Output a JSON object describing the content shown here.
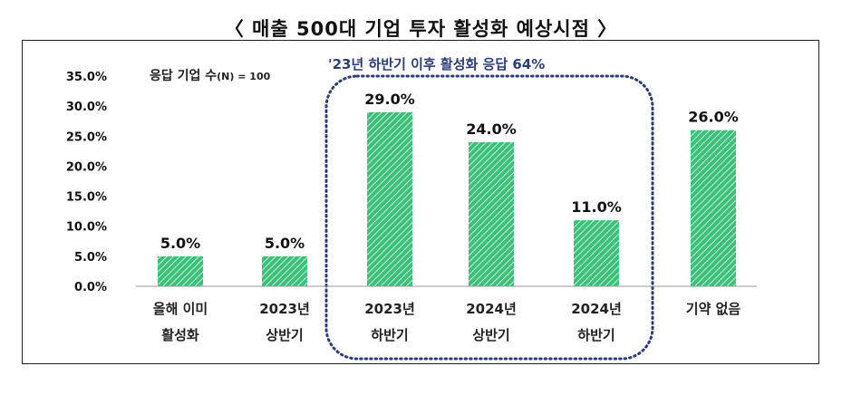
{
  "header": {
    "title": "〈  매출 500대 기업 투자 활성화 예상시점  〉"
  },
  "annotations": {
    "sample_prefix": "응답 기업 수",
    "sample_value": "(N) = 100",
    "highlight": "'23년 하반기 이후 활성화 응답 64%"
  },
  "colors": {
    "bar": "#3cc07a",
    "bar_hatch": "#ffffff",
    "highlight_border": "#2c3e7a",
    "axis": "#999999"
  },
  "chart_data": {
    "type": "bar",
    "title": "〈  매출 500대 기업 투자 활성화 예상시점  〉",
    "xlabel": "",
    "ylabel": "",
    "categories": [
      [
        "올해 이미",
        "활성화"
      ],
      [
        "2023년",
        "상반기"
      ],
      [
        "2023년",
        "하반기"
      ],
      [
        "2024년",
        "상반기"
      ],
      [
        "2024년",
        "하반기"
      ],
      [
        "기약 없음",
        ""
      ]
    ],
    "values": [
      5.0,
      5.0,
      29.0,
      24.0,
      11.0,
      26.0
    ],
    "data_labels": [
      "5.0%",
      "5.0%",
      "29.0%",
      "24.0%",
      "11.0%",
      "26.0%"
    ],
    "ylim": [
      0,
      35
    ],
    "yticks": [
      0,
      5,
      10,
      15,
      20,
      25,
      30,
      35
    ],
    "ytick_labels": [
      "0.0%",
      "5.0%",
      "10.0%",
      "15.0%",
      "20.0%",
      "25.0%",
      "30.0%",
      "35.0%"
    ],
    "grid": false,
    "legend": "none",
    "highlight_group": [
      2,
      3,
      4
    ]
  }
}
